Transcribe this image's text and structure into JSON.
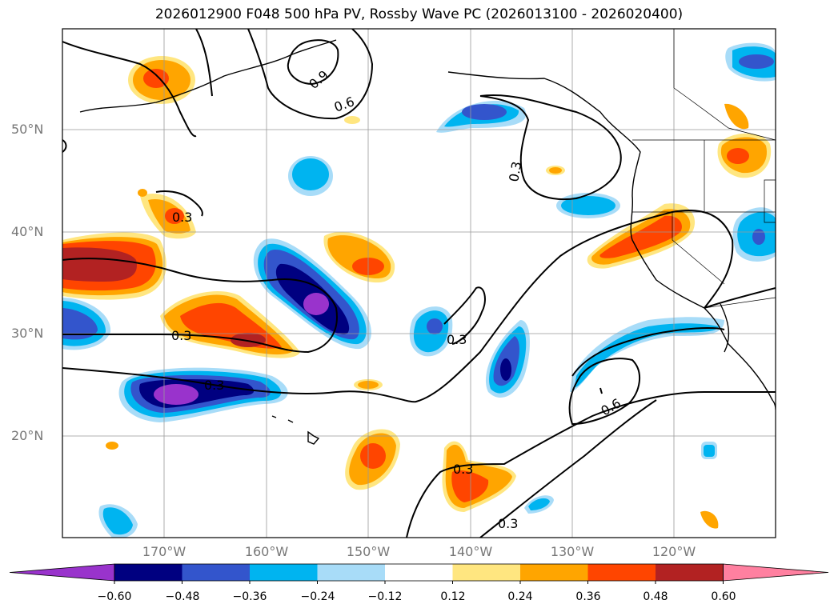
{
  "title": "2026012900 F048 500 hPa PV, Rossby Wave PC (2026013100 - 2026020400)",
  "latitude_labels": [
    "50°N",
    "40°N",
    "30°N",
    "20°N"
  ],
  "longitude_labels": [
    "170°W",
    "160°W",
    "150°W",
    "140°W",
    "130°W",
    "120°W"
  ],
  "contour_labels": [
    "0.3",
    "0.3",
    "0.3",
    "0.3",
    "0.3",
    "0.3",
    "0.3",
    "0.6",
    "0.6",
    "0.9"
  ],
  "colorbar": {
    "tick_labels": [
      "−0.60",
      "−0.48",
      "−0.36",
      "−0.24",
      "−0.12",
      "0.12",
      "0.24",
      "0.36",
      "0.48",
      "0.60"
    ],
    "colors": [
      "#9933cc",
      "#000080",
      "#3355cc",
      "#00b4f0",
      "#a8dcf8",
      "#ffffff",
      "#ffe680",
      "#ffa500",
      "#ff4500",
      "#b22222",
      "#ff80a0"
    ]
  }
}
